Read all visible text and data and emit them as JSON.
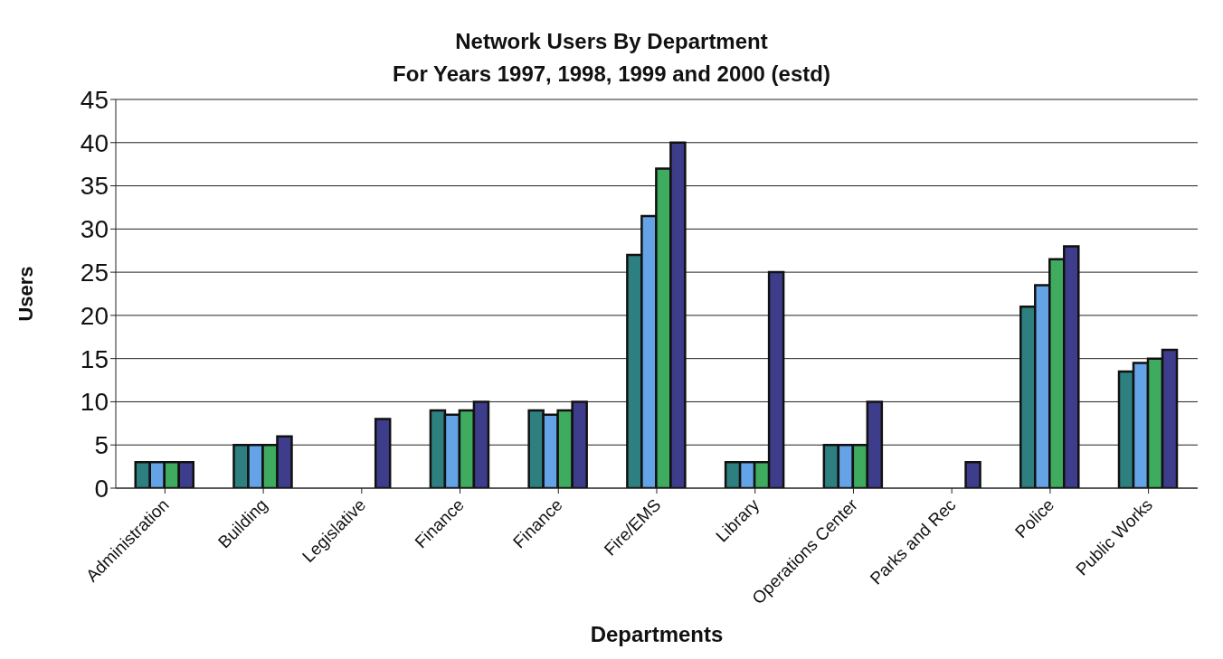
{
  "chart_data": {
    "type": "bar",
    "title": "Network Users By Department",
    "subtitle": "For Years 1997, 1998, 1999 and 2000 (estd)",
    "xlabel": "Departments",
    "ylabel": "Users",
    "categories": [
      "Administration",
      "Building",
      "Legislative",
      "Finance",
      "Finance",
      "Fire/EMS",
      "Library",
      "Operations Center",
      "Parks and Rec",
      "Police",
      "Public Works"
    ],
    "series": [
      {
        "color": "#2e7f7f",
        "values": [
          3,
          5,
          null,
          9,
          9,
          27,
          3,
          5,
          null,
          21,
          13.5
        ]
      },
      {
        "color": "#64a4e6",
        "values": [
          3,
          5,
          null,
          8.5,
          8.5,
          31.5,
          3,
          5,
          null,
          23.5,
          14.5
        ]
      },
      {
        "color": "#3fab5f",
        "values": [
          3,
          5,
          null,
          9,
          9,
          37,
          3,
          5,
          null,
          26.5,
          15
        ]
      },
      {
        "color": "#3d3d8c",
        "values": [
          3,
          6,
          8,
          10,
          10,
          40,
          25,
          10,
          3,
          28,
          16
        ]
      }
    ],
    "ylim": [
      0,
      45
    ],
    "yticks": [
      0,
      5,
      10,
      15,
      20,
      25,
      30,
      35,
      40,
      45
    ],
    "grid": "y",
    "legend": false
  }
}
